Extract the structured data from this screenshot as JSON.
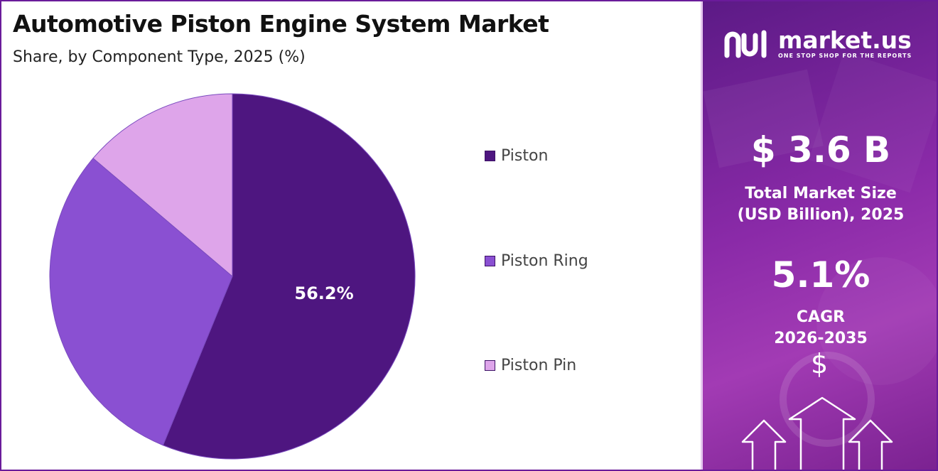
{
  "chart_data": {
    "type": "pie",
    "title": "Automotive Piston Engine System Market",
    "subtitle": "Share, by Component Type, 2025 (%)",
    "categories": [
      "Piston",
      "Piston Ring",
      "Piston Pin"
    ],
    "values": [
      56.2,
      30.0,
      13.8
    ],
    "data_labels": [
      "56.2%",
      "",
      ""
    ],
    "colors": [
      "#4e1680",
      "#8a50d2",
      "#dea5ea"
    ],
    "legend_position": "right"
  },
  "sidebar": {
    "brand_name": "market.us",
    "brand_tagline": "ONE STOP SHOP FOR THE REPORTS",
    "market_size_value": "$ 3.6 B",
    "market_size_label_line1": "Total Market Size",
    "market_size_label_line2": "(USD Billion), 2025",
    "cagr_value": "5.1%",
    "cagr_label_line1": "CAGR",
    "cagr_label_line2": "2026-2035",
    "dollar_symbol": "$"
  }
}
